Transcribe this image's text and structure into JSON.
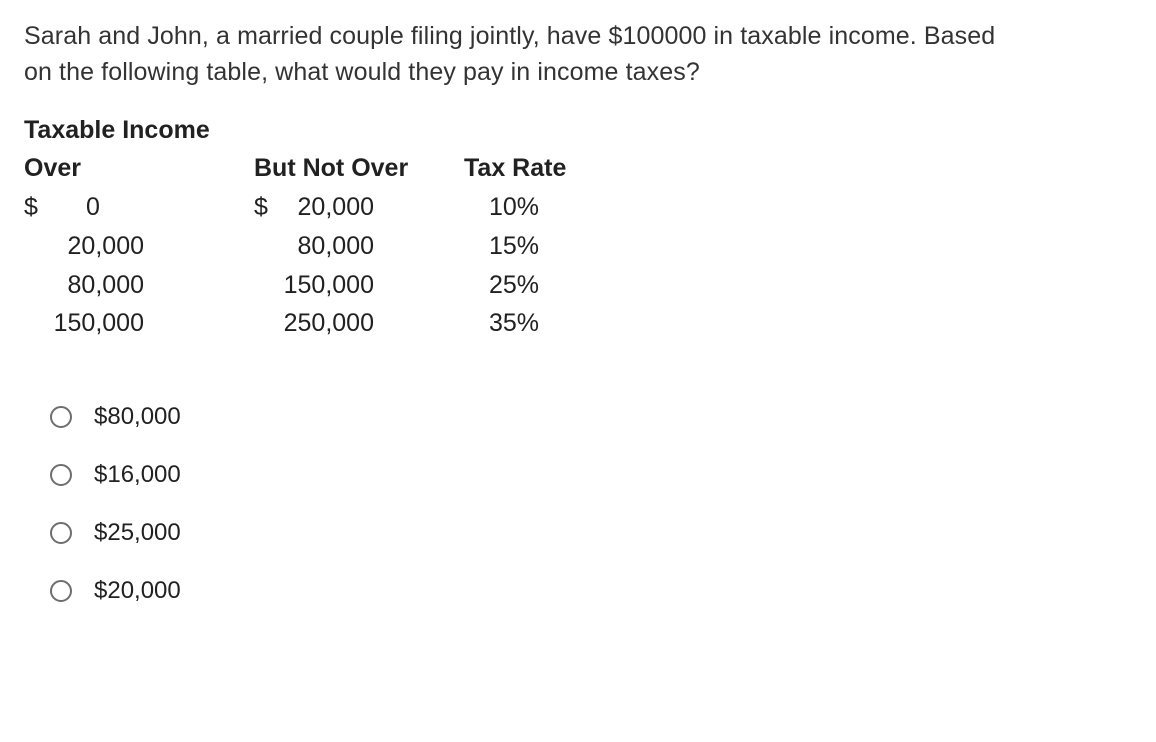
{
  "question": {
    "line1": "Sarah and John, a married couple filing jointly, have $100000 in taxable income.  Based",
    "line2": "on the following table, what would they pay in income taxes?"
  },
  "table": {
    "title": "Taxable Income",
    "headers": {
      "over": "Over",
      "but_not_over": "But Not Over",
      "tax_rate": "Tax Rate"
    },
    "rows": [
      {
        "over_dollar": "$",
        "over_amount": "0",
        "but_dollar": "$",
        "but_amount": "20,000",
        "rate": "10%"
      },
      {
        "over_dollar": "",
        "over_amount": "20,000",
        "but_dollar": "",
        "but_amount": "80,000",
        "rate": "15%"
      },
      {
        "over_dollar": "",
        "over_amount": "80,000",
        "but_dollar": "",
        "but_amount": "150,000",
        "rate": "25%"
      },
      {
        "over_dollar": "",
        "over_amount": "150,000",
        "but_dollar": "",
        "but_amount": "250,000",
        "rate": "35%"
      }
    ]
  },
  "options": [
    {
      "label": "$80,000"
    },
    {
      "label": "$16,000"
    },
    {
      "label": "$25,000"
    },
    {
      "label": "$20,000"
    }
  ],
  "style": {
    "text_color": "#212121",
    "question_color": "#333333",
    "radio_border_color": "#6e6e6e",
    "background_color": "#ffffff",
    "question_fontsize": 25,
    "table_fontsize": 25,
    "option_fontsize": 24
  }
}
